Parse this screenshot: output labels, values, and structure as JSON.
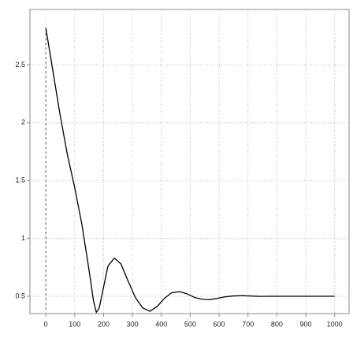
{
  "chart_data": {
    "type": "line",
    "x": [
      0,
      25,
      50,
      75,
      100,
      125,
      150,
      165,
      175,
      185,
      200,
      215,
      237,
      260,
      285,
      310,
      335,
      360,
      385,
      410,
      435,
      463,
      490,
      515,
      540,
      564,
      590,
      620,
      650,
      681,
      710,
      740,
      780,
      850,
      925,
      1000
    ],
    "series": [
      {
        "color": "#000000",
        "values": [
          2.82,
          2.44,
          2.06,
          1.72,
          1.44,
          1.12,
          0.72,
          0.46,
          0.36,
          0.4,
          0.58,
          0.76,
          0.83,
          0.78,
          0.63,
          0.49,
          0.4,
          0.37,
          0.41,
          0.48,
          0.53,
          0.54,
          0.52,
          0.49,
          0.475,
          0.47,
          0.48,
          0.495,
          0.503,
          0.505,
          0.502,
          0.499,
          0.5,
          0.5,
          0.5,
          0.5
        ]
      }
    ],
    "xlim": [
      -55,
      1050
    ],
    "ylim": [
      0.35,
      2.98
    ],
    "xticks": [
      0,
      100,
      200,
      300,
      400,
      500,
      600,
      700,
      800,
      900,
      1000
    ],
    "yticks": [
      0.5,
      1,
      1.5,
      2,
      2.5
    ],
    "grid": true
  }
}
